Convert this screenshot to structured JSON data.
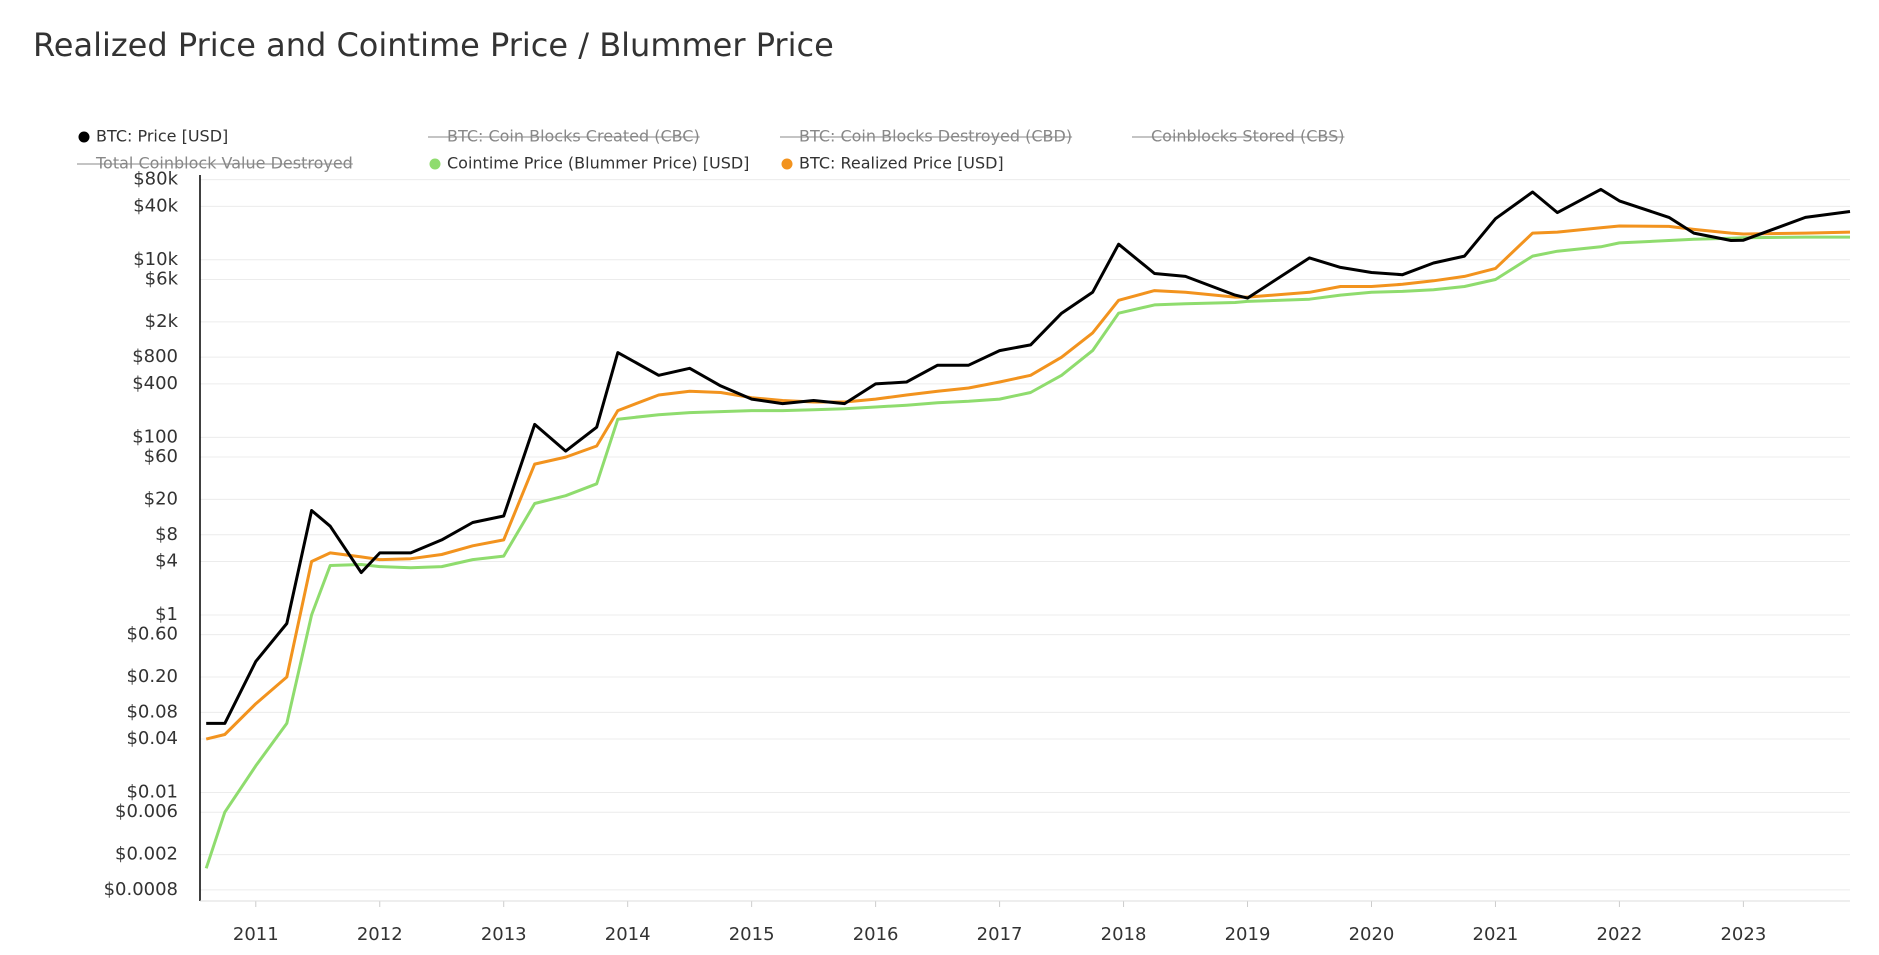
{
  "chart_data": {
    "type": "line",
    "title": "Realized Price and Cointime Price / Blummer Price",
    "log_scale": true,
    "grid": true,
    "x": [
      2010.6,
      2010.75,
      2011.0,
      2011.25,
      2011.45,
      2011.6,
      2011.85,
      2012.0,
      2012.25,
      2012.5,
      2012.75,
      2013.0,
      2013.25,
      2013.5,
      2013.75,
      2013.92,
      2014.25,
      2014.5,
      2014.75,
      2015.0,
      2015.25,
      2015.5,
      2015.75,
      2016.0,
      2016.25,
      2016.5,
      2016.75,
      2017.0,
      2017.25,
      2017.5,
      2017.75,
      2017.96,
      2018.25,
      2018.5,
      2018.9,
      2019.0,
      2019.5,
      2019.75,
      2020.0,
      2020.25,
      2020.5,
      2020.75,
      2021.0,
      2021.3,
      2021.5,
      2021.85,
      2022.0,
      2022.4,
      2022.6,
      2022.9,
      2023.0,
      2023.5,
      2023.86
    ],
    "series": [
      {
        "name": "BTC: Price [USD]",
        "color": "#000000",
        "values": [
          0.06,
          0.06,
          0.3,
          0.8,
          15,
          10,
          3,
          5,
          5,
          7,
          11,
          13,
          140,
          70,
          130,
          900,
          500,
          600,
          380,
          270,
          240,
          260,
          240,
          400,
          420,
          650,
          650,
          950,
          1100,
          2500,
          4300,
          15000,
          7000,
          6500,
          4000,
          3700,
          10500,
          8200,
          7200,
          6800,
          9200,
          11000,
          29000,
          58000,
          34000,
          62000,
          46000,
          30000,
          20000,
          16500,
          16600,
          30000,
          35000
        ]
      },
      {
        "name": "Cointime Price (Blummer Price) [USD]",
        "color": "#8fdc6e",
        "values": [
          0.0014,
          0.006,
          0.02,
          0.06,
          1,
          3.6,
          3.7,
          3.5,
          3.4,
          3.5,
          4.2,
          4.6,
          18,
          22,
          30,
          160,
          180,
          190,
          195,
          200,
          200,
          205,
          210,
          220,
          230,
          245,
          255,
          270,
          320,
          500,
          950,
          2500,
          3100,
          3200,
          3300,
          3400,
          3600,
          4000,
          4300,
          4400,
          4600,
          5000,
          6000,
          11000,
          12500,
          14000,
          15500,
          16500,
          17000,
          17500,
          17700,
          18000,
          18000
        ]
      },
      {
        "name": "BTC: Realized Price [USD]",
        "color": "#f2931e",
        "values": [
          0.04,
          0.045,
          0.1,
          0.2,
          4,
          5,
          4.5,
          4.2,
          4.3,
          4.8,
          6,
          7,
          50,
          60,
          80,
          200,
          300,
          330,
          320,
          280,
          260,
          250,
          250,
          270,
          300,
          330,
          360,
          420,
          500,
          800,
          1500,
          3500,
          4500,
          4300,
          3800,
          3800,
          4300,
          5000,
          5000,
          5300,
          5800,
          6500,
          8000,
          20000,
          20500,
          23000,
          24000,
          23800,
          22000,
          20000,
          19500,
          20000,
          20500
        ]
      }
    ],
    "hidden_series": [
      "BTC: Coin Blocks Created (CBC)",
      "BTC: Coin Blocks Destroyed (CBD)",
      "Coinblocks Stored (CBS)",
      "Total Coinblock Value Destroyed"
    ],
    "xlim": [
      2010.55,
      2023.86
    ],
    "xticks": [
      2011,
      2012,
      2013,
      2014,
      2015,
      2016,
      2017,
      2018,
      2019,
      2020,
      2021,
      2022,
      2023
    ],
    "ylim": [
      0.0006,
      100000
    ],
    "yticks": [
      {
        "value": 80000,
        "label": "$80k"
      },
      {
        "value": 40000,
        "label": "$40k"
      },
      {
        "value": 10000,
        "label": "$10k"
      },
      {
        "value": 6000,
        "label": "$6k"
      },
      {
        "value": 2000,
        "label": "$2k"
      },
      {
        "value": 800,
        "label": "$800"
      },
      {
        "value": 400,
        "label": "$400"
      },
      {
        "value": 100,
        "label": "$100"
      },
      {
        "value": 60,
        "label": "$60"
      },
      {
        "value": 20,
        "label": "$20"
      },
      {
        "value": 8,
        "label": "$8"
      },
      {
        "value": 4,
        "label": "$4"
      },
      {
        "value": 1,
        "label": "$1"
      },
      {
        "value": 0.6,
        "label": "$0.60"
      },
      {
        "value": 0.2,
        "label": "$0.20"
      },
      {
        "value": 0.08,
        "label": "$0.08"
      },
      {
        "value": 0.04,
        "label": "$0.04"
      },
      {
        "value": 0.01,
        "label": "$0.01"
      },
      {
        "value": 0.006,
        "label": "$0.006"
      },
      {
        "value": 0.002,
        "label": "$0.002"
      },
      {
        "value": 0.0008,
        "label": "$0.0008"
      }
    ]
  }
}
